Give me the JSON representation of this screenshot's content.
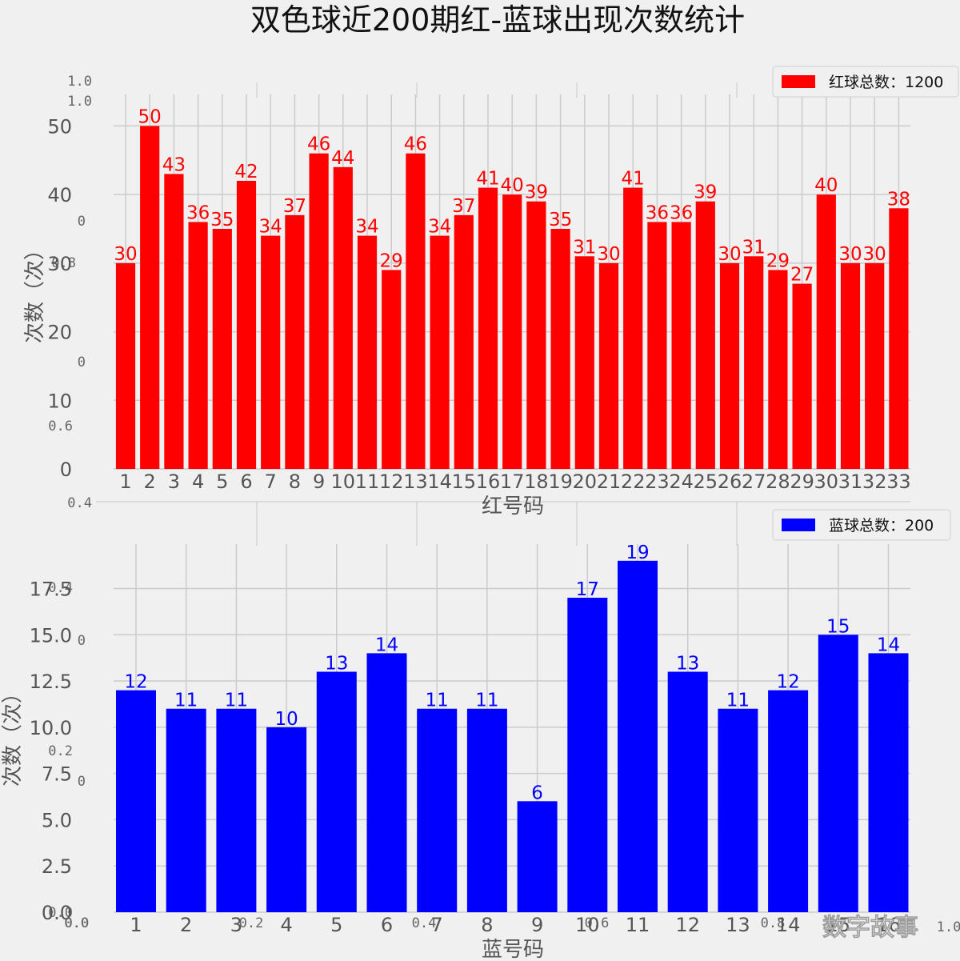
{
  "title": "双色球近200期红-蓝球出现次数统计",
  "watermark": "数字故事",
  "colors": {
    "background": "#f0f0f0",
    "grid": "#cbcbcb",
    "red": "#ff0000",
    "blue": "#0000ff"
  },
  "ghost_axis": {
    "left_ticks": [
      "1.0",
      "1.0",
      "0",
      "0.8",
      "0",
      "0.6",
      "0.4",
      "0.4",
      "0",
      "0.2",
      "0",
      "0.0",
      "0.0"
    ],
    "bottom_ticks": [
      "0.0",
      "0.2",
      "0.4",
      "0.6",
      "0.8",
      "1.0"
    ]
  },
  "chart_data": [
    {
      "type": "bar",
      "color": "#ff0000",
      "title": "",
      "xlabel": "红号码",
      "ylabel": "次数（次）",
      "legend": "红球总数：1200",
      "legend_position": "top-right",
      "grid": true,
      "ylim": [
        0,
        54.6
      ],
      "yticks": [
        "0",
        "10",
        "20",
        "30",
        "40",
        "50"
      ],
      "categories": [
        "1",
        "2",
        "3",
        "4",
        "5",
        "6",
        "7",
        "8",
        "9",
        "10",
        "11",
        "12",
        "13",
        "14",
        "15",
        "16",
        "17",
        "18",
        "19",
        "20",
        "21",
        "22",
        "23",
        "24",
        "25",
        "26",
        "27",
        "28",
        "29",
        "30",
        "31",
        "32",
        "33"
      ],
      "values": [
        30,
        50,
        43,
        36,
        35,
        42,
        34,
        37,
        46,
        44,
        34,
        29,
        46,
        34,
        37,
        41,
        40,
        39,
        35,
        31,
        30,
        41,
        36,
        36,
        39,
        30,
        31,
        29,
        27,
        40,
        30,
        30,
        38
      ]
    },
    {
      "type": "bar",
      "color": "#0000ff",
      "title": "",
      "xlabel": "蓝号码",
      "ylabel": "次数（次）",
      "legend": "蓝球总数：200",
      "legend_position": "top-right",
      "grid": true,
      "ylim": [
        0,
        19.9
      ],
      "yticks": [
        "0.0",
        "2.5",
        "5.0",
        "7.5",
        "10.0",
        "12.5",
        "15.0",
        "17.5"
      ],
      "categories": [
        "1",
        "2",
        "3",
        "4",
        "5",
        "6",
        "7",
        "8",
        "9",
        "10",
        "11",
        "12",
        "13",
        "14",
        "15",
        "16"
      ],
      "values": [
        12,
        11,
        11,
        10,
        13,
        14,
        11,
        11,
        6,
        17,
        19,
        13,
        11,
        12,
        15,
        14
      ]
    }
  ]
}
